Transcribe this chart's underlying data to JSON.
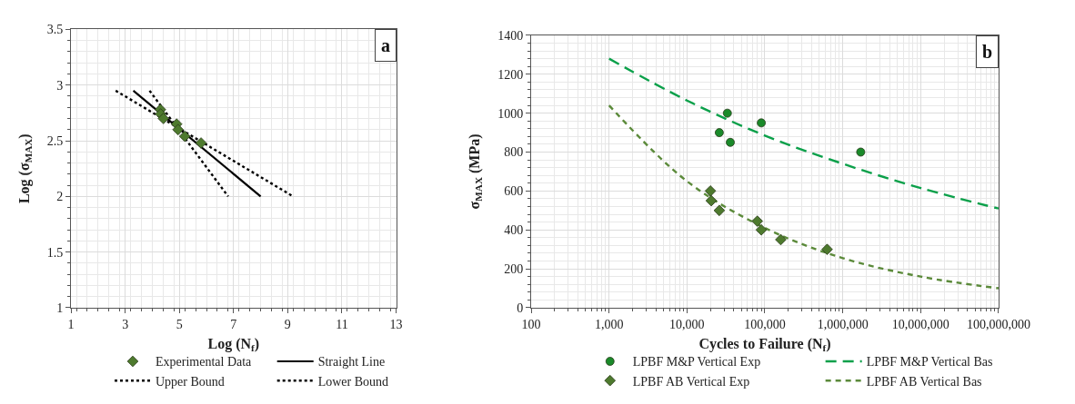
{
  "chart_data": [
    {
      "type": "scatter",
      "xlabel": "Log (N$_{f}$)",
      "ylabel": "Log (σ$_{MAX}$)",
      "xlim": [
        1,
        13
      ],
      "ylim": [
        1,
        3.5
      ],
      "xticks": [
        1,
        3,
        5,
        7,
        9,
        11,
        13
      ],
      "yticks": [
        1,
        1.5,
        2,
        2.5,
        3,
        3.5
      ],
      "grid": true,
      "legend": "bottom",
      "annotations": [
        "a"
      ],
      "series": [
        {
          "name": "Experimental Data",
          "type": "scatter",
          "marker": "diamond",
          "color": "#4e7a2e",
          "x": [
            4.3,
            4.31,
            4.41,
            4.9,
            4.95,
            5.2,
            5.8
          ],
          "values": [
            2.78,
            2.74,
            2.7,
            2.65,
            2.6,
            2.54,
            2.48
          ]
        },
        {
          "name": "Straight Line",
          "type": "line",
          "line_style": "solid",
          "color": "#000000",
          "x": [
            3.3,
            8.0
          ],
          "values": [
            2.95,
            2.0
          ]
        },
        {
          "name": "Upper Bound",
          "type": "line",
          "line_style": "dotted",
          "color": "#000000",
          "x": [
            2.65,
            9.2
          ],
          "values": [
            2.95,
            2.0
          ]
        },
        {
          "name": "Lower Bound",
          "type": "line",
          "line_style": "dotted",
          "color": "#000000",
          "x": [
            3.9,
            6.8
          ],
          "values": [
            2.95,
            2.0
          ]
        }
      ]
    },
    {
      "type": "scatter",
      "xlabel": "Cycles to Failure (N$_{f}$)",
      "ylabel": "σ$_{MAX}$ (MPa)",
      "log": "x",
      "xlim": [
        100,
        100000000
      ],
      "ylim": [
        0,
        1400
      ],
      "xticks": [
        100,
        {
          "value": 1000,
          "label": "1,000"
        },
        {
          "value": 10000,
          "label": "10,000"
        },
        {
          "value": 100000,
          "label": "100,000"
        },
        {
          "value": 1000000,
          "label": "1,000,000"
        },
        {
          "value": 10000000,
          "label": "10,000,000"
        },
        {
          "value": 100000000,
          "label": "100,000,000"
        }
      ],
      "yticks": [
        0,
        200,
        400,
        600,
        800,
        1000,
        1200,
        1400
      ],
      "grid": true,
      "legend": "bottom",
      "annotations": [
        "b"
      ],
      "series": [
        {
          "name": "LPBF M&P Vertical Exp",
          "type": "scatter",
          "marker": "circle",
          "color": "#1a8a2a",
          "x": [
            26000,
            33000,
            36000,
            90000,
            1700000
          ],
          "values": [
            900,
            1000,
            850,
            950,
            800
          ]
        },
        {
          "name": "LPBF M&P Vertical Bas",
          "type": "line",
          "line_style": "dashed",
          "color": "#0ba04a",
          "x": [
            1000,
            10000,
            100000,
            1000000,
            10000000,
            100000000
          ],
          "values": [
            1280,
            1065,
            885,
            740,
            615,
            510
          ]
        },
        {
          "name": "LPBF AB Vertical Exp",
          "type": "scatter",
          "marker": "diamond",
          "color": "#4e7a2e",
          "x": [
            20000,
            20500,
            26000,
            80000,
            90000,
            160000,
            630000
          ],
          "values": [
            600,
            550,
            500,
            445,
            400,
            350,
            300
          ]
        },
        {
          "name": "LPBF AB Vertical Bas",
          "type": "line",
          "line_style": "dashed",
          "color": "#5b8a3a",
          "x": [
            1000,
            10000,
            100000,
            1000000,
            10000000,
            100000000
          ],
          "values": [
            1040,
            650,
            410,
            255,
            160,
            100
          ]
        }
      ]
    }
  ]
}
